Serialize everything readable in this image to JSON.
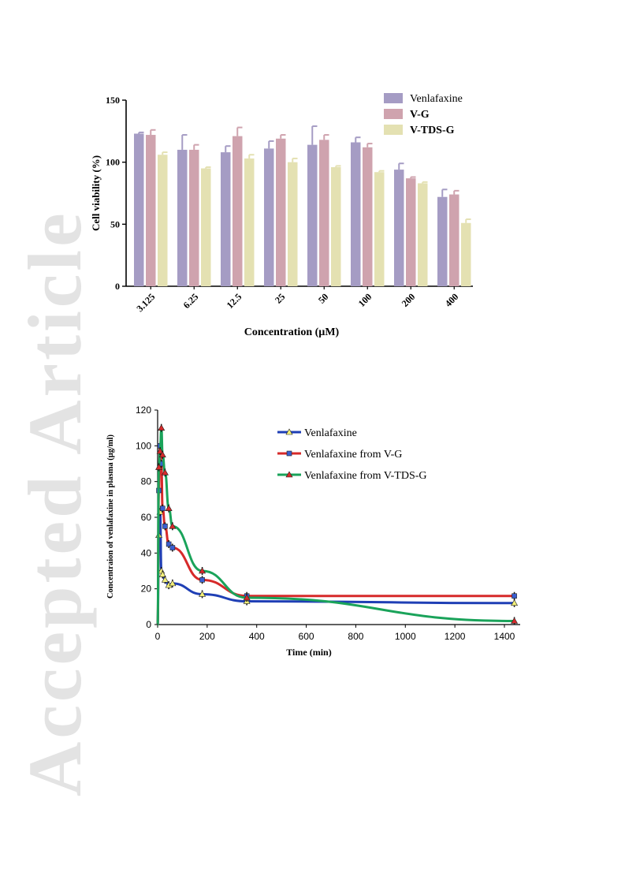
{
  "watermark": "Accepted Article",
  "chart_data": [
    {
      "type": "bar",
      "xlabel": "Concentration (µM)",
      "ylabel": "Cell viability (%)",
      "ylim": [
        0,
        150
      ],
      "yticks": [
        "0",
        "50",
        "100",
        "150"
      ],
      "categories": [
        "3.125",
        "6.25",
        "12.5",
        "25",
        "50",
        "100",
        "200",
        "400"
      ],
      "legend_position": "top-right",
      "series": [
        {
          "name": "Venlafaxine",
          "color": "#a59cc4",
          "values": [
            123,
            110,
            108,
            111,
            114,
            116,
            94,
            72
          ],
          "errors": [
            1,
            12,
            5,
            6,
            15,
            4,
            5,
            6
          ]
        },
        {
          "name": "V-G",
          "color": "#cfa3ae",
          "values": [
            122,
            110,
            121,
            119,
            118,
            112,
            87,
            74
          ],
          "errors": [
            4,
            4,
            7,
            3,
            4,
            3,
            1,
            3
          ]
        },
        {
          "name": "V-TDS-G",
          "color": "#e4e1b2",
          "values": [
            106,
            95,
            103,
            100,
            96,
            92,
            83,
            51
          ],
          "errors": [
            2,
            1,
            3,
            3,
            1,
            1,
            1,
            3
          ]
        }
      ]
    },
    {
      "type": "line",
      "xlabel": "Time (min)",
      "ylabel": "Concentraion of venlafaxine in plasma (μg/ml)",
      "xlim": [
        0,
        1440
      ],
      "ylim": [
        0,
        120
      ],
      "xticks": [
        "0",
        "200",
        "400",
        "600",
        "800",
        "1000",
        "1200",
        "1400"
      ],
      "yticks": [
        "0",
        "20",
        "40",
        "60",
        "80",
        "100",
        "120"
      ],
      "legend_position": "top-right",
      "series": [
        {
          "name": "Venlafaxine",
          "color": "#1f3fb5",
          "marker": "triangle-yellow",
          "x": [
            0,
            5,
            10,
            15,
            20,
            30,
            45,
            60,
            180,
            360,
            1440
          ],
          "y": [
            0,
            50,
            63,
            30,
            28,
            25,
            22,
            23,
            17,
            13,
            12
          ]
        },
        {
          "name": "Venlafaxine from V-G",
          "color": "#d62a2a",
          "marker": "square-blue",
          "x": [
            0,
            5,
            10,
            15,
            20,
            30,
            45,
            60,
            180,
            360,
            1440
          ],
          "y": [
            0,
            75,
            100,
            90,
            65,
            55,
            45,
            43,
            25,
            16,
            16
          ]
        },
        {
          "name": "Venlafaxine from V-TDS-G",
          "color": "#1aa35a",
          "marker": "triangle-red",
          "x": [
            0,
            5,
            10,
            15,
            20,
            30,
            45,
            60,
            180,
            360,
            1440
          ],
          "y": [
            0,
            88,
            97,
            110,
            95,
            85,
            65,
            55,
            30,
            15,
            2
          ]
        }
      ]
    }
  ]
}
